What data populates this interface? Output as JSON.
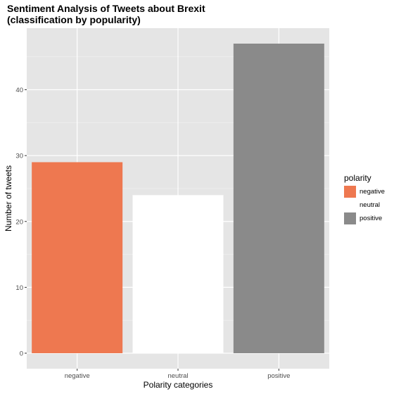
{
  "chart_data": {
    "type": "bar",
    "title_lines": [
      "Sentiment Analysis of Tweets about Brexit",
      "(classification by popularity)"
    ],
    "xlabel": "Polarity categories",
    "ylabel": "Number of tweets",
    "categories": [
      "negative",
      "neutral",
      "positive"
    ],
    "values": [
      29,
      24,
      47
    ],
    "colors": [
      "#ee7850",
      "#ffffff",
      "#8a8a8a"
    ],
    "yticks": [
      0,
      10,
      20,
      30,
      40
    ],
    "ylim": [
      -2.35,
      49.35
    ],
    "grid": true,
    "panel_background": "#e5e5e5",
    "legend": {
      "title": "polarity",
      "placement": "right",
      "entries": [
        "negative",
        "neutral",
        "positive"
      ]
    }
  }
}
